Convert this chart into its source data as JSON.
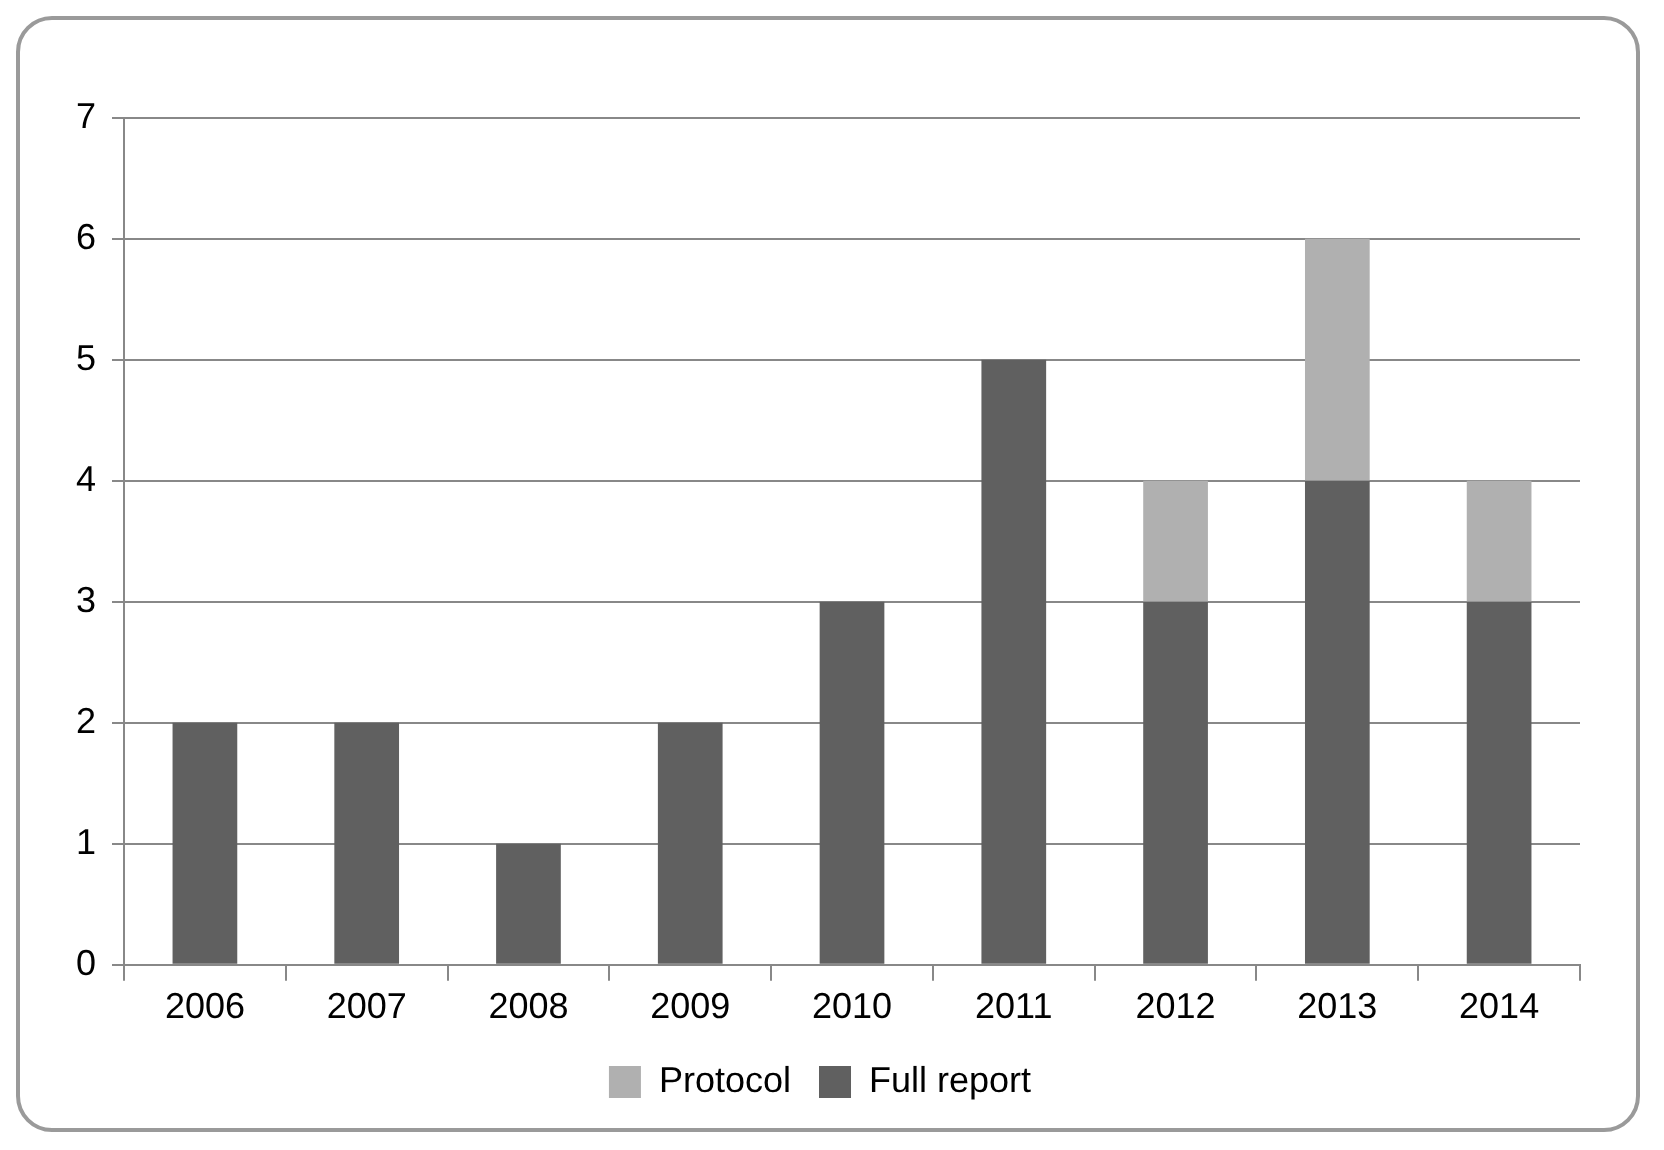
{
  "chart_data": {
    "type": "bar",
    "stacked": true,
    "categories": [
      "2006",
      "2007",
      "2008",
      "2009",
      "2010",
      "2011",
      "2012",
      "2013",
      "2014"
    ],
    "series": [
      {
        "name": "Full report",
        "color": "#606060",
        "values": [
          2,
          2,
          1,
          2,
          3,
          5,
          3,
          4,
          3
        ]
      },
      {
        "name": "Protocol",
        "color": "#b0b0b0",
        "values": [
          0,
          0,
          0,
          0,
          0,
          0,
          1,
          2,
          1
        ]
      }
    ],
    "ylim": [
      0,
      7
    ],
    "yticks": [
      0,
      1,
      2,
      3,
      4,
      5,
      6,
      7
    ],
    "grid": "y",
    "legend": "bottom"
  }
}
